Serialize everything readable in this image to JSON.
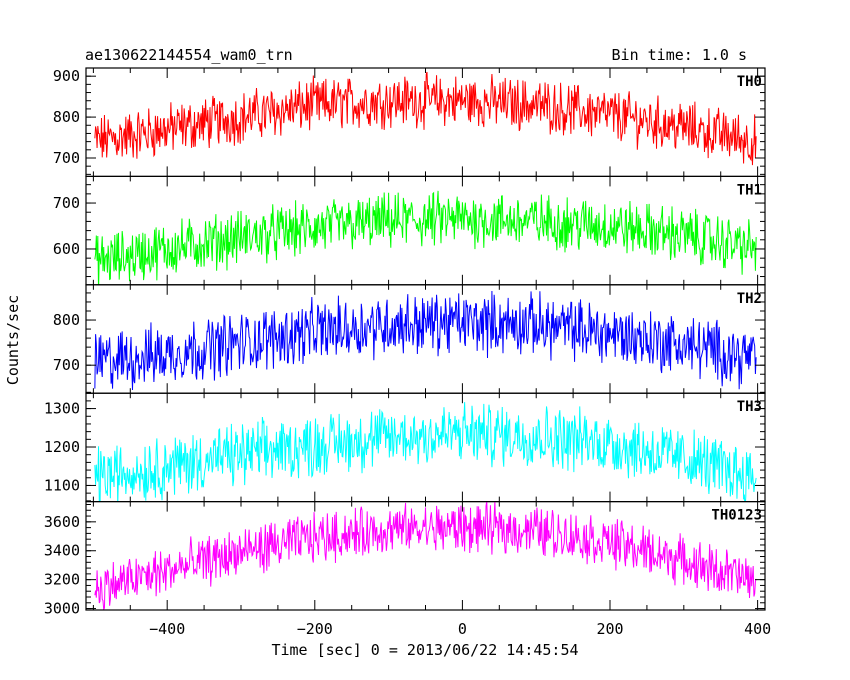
{
  "header": {
    "title": "ae130622144554_wam0_trn",
    "bin_time": "Bin time: 1.0 s"
  },
  "chart_data": {
    "type": "line",
    "xlabel": "Time [sec] 0 = 2013/06/22 14:45:54",
    "ylabel": "Counts/sec",
    "xlim": [
      -510,
      410
    ],
    "x_ticks": [
      -400,
      -200,
      0,
      200,
      400
    ],
    "x_tick_labels": [
      "−400",
      "−200",
      "0",
      "200",
      "400"
    ],
    "x_range": [
      -498,
      398
    ],
    "x_step": 1,
    "panels": [
      {
        "name": "TH0",
        "color": "#ff0000",
        "ylim": [
          655,
          920
        ],
        "y_ticks": [
          700,
          800,
          900
        ],
        "y_tick_labels": [
          "700",
          "800",
          "900"
        ],
        "x": [
          -500,
          -400,
          -300,
          -200,
          -100,
          0,
          100,
          200,
          300,
          400
        ],
        "values": [
          740,
          770,
          800,
          830,
          840,
          840,
          830,
          805,
          775,
          740
        ],
        "noise": 75
      },
      {
        "name": "TH1",
        "color": "#00ff00",
        "ylim": [
          522,
          758
        ],
        "y_ticks": [
          600,
          700
        ],
        "y_tick_labels": [
          "600",
          "700"
        ],
        "x": [
          -500,
          -400,
          -300,
          -200,
          -100,
          0,
          100,
          200,
          300,
          400
        ],
        "values": [
          570,
          600,
          625,
          645,
          660,
          665,
          660,
          650,
          630,
          600
        ],
        "noise": 70
      },
      {
        "name": "TH2",
        "color": "#0000ff",
        "ylim": [
          638,
          878
        ],
        "y_ticks": [
          700,
          800
        ],
        "y_tick_labels": [
          "700",
          "800"
        ],
        "x": [
          -500,
          -400,
          -300,
          -200,
          -100,
          0,
          100,
          200,
          300,
          400
        ],
        "values": [
          705,
          725,
          750,
          775,
          790,
          795,
          790,
          770,
          745,
          715
        ],
        "noise": 80
      },
      {
        "name": "TH3",
        "color": "#00ffff",
        "ylim": [
          1058,
          1340
        ],
        "y_ticks": [
          1100,
          1200,
          1300
        ],
        "y_tick_labels": [
          "1100",
          "1200",
          "1300"
        ],
        "x": [
          -500,
          -400,
          -300,
          -200,
          -100,
          0,
          100,
          200,
          300,
          400
        ],
        "values": [
          1120,
          1150,
          1180,
          1205,
          1225,
          1235,
          1230,
          1210,
          1170,
          1120
        ],
        "noise": 95
      },
      {
        "name": "TH0123",
        "color": "#ff00ff",
        "ylim": [
          2990,
          3740
        ],
        "y_ticks": [
          3000,
          3200,
          3400,
          3600
        ],
        "y_tick_labels": [
          "3000",
          "3200",
          "3400",
          "3600"
        ],
        "x": [
          -500,
          -400,
          -300,
          -200,
          -100,
          0,
          100,
          200,
          300,
          400
        ],
        "values": [
          3130,
          3260,
          3390,
          3490,
          3545,
          3560,
          3540,
          3460,
          3330,
          3180
        ],
        "noise": 200
      }
    ]
  }
}
